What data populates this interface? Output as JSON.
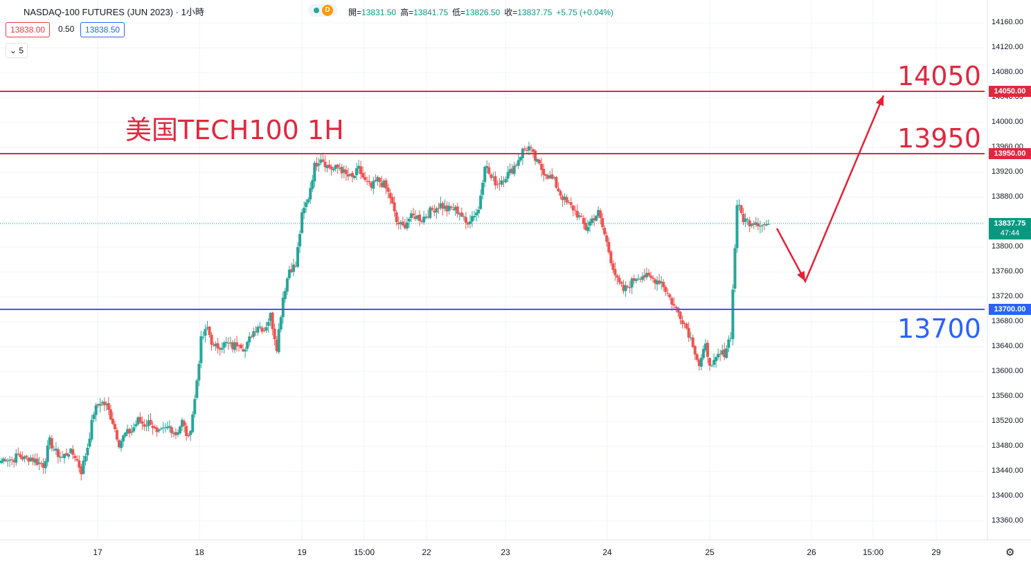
{
  "header": {
    "symbol": "NASDAQ-100 FUTURES (JUN 2023)",
    "sep": "·",
    "interval": "1小時",
    "badge_letter": "D",
    "ohlc": [
      {
        "k": "開=",
        "v": "13831.50"
      },
      {
        "k": "高=",
        "v": "13841.75"
      },
      {
        "k": "低=",
        "v": "13826.50"
      },
      {
        "k": "收=",
        "v": "13837.75"
      },
      {
        "k": "",
        "v": "+5.75 (+0.04%)"
      }
    ]
  },
  "trade": {
    "sell": "13838.00",
    "spread": "0.50",
    "buy": "13838.50",
    "indicator_count": "5"
  },
  "colors": {
    "up": "#26a69a",
    "down": "#ef5350",
    "red_line": "#e0283f",
    "blue_line": "#2962ff",
    "grid": "#f0f3fa",
    "current": "#089981"
  },
  "chart_data": {
    "type": "candlestick",
    "title": "美国TECH100 1H",
    "ylim": [
      13340,
      14180
    ],
    "y_ticks": [
      "14160.00",
      "14120.00",
      "14080.00",
      "14040.00",
      "14000.00",
      "13960.00",
      "13920.00",
      "13880.00",
      "13840.00",
      "13800.00",
      "13760.00",
      "13720.00",
      "13680.00",
      "13640.00",
      "13600.00",
      "13560.00",
      "13520.00",
      "13480.00",
      "13440.00",
      "13400.00",
      "13360.00"
    ],
    "x_ticks": [
      "17",
      "18",
      "19",
      "15:00",
      "22",
      "23",
      "24",
      "25",
      "26",
      "15:00",
      "29"
    ],
    "levels": [
      {
        "value": 14050,
        "label": "14050.00",
        "annotation": "14050",
        "color": "red"
      },
      {
        "value": 13950,
        "label": "13950.00",
        "annotation": "13950",
        "color": "red"
      },
      {
        "value": 13700,
        "label": "13700.00",
        "annotation": "13700",
        "color": "blue"
      }
    ],
    "current_price": {
      "value": "13837.75",
      "countdown": "47:44"
    },
    "forecast_path": [
      13830,
      13745,
      14050
    ],
    "anchors": [
      13455,
      13462,
      13458,
      13466,
      13460,
      13462,
      13455,
      13450,
      13488,
      13470,
      13462,
      13472,
      13465,
      13440,
      13480,
      13535,
      13552,
      13545,
      13520,
      13485,
      13500,
      13505,
      13522,
      13515,
      13520,
      13498,
      13505,
      13512,
      13500,
      13520,
      13490,
      13555,
      13650,
      13670,
      13638,
      13642,
      13645,
      13640,
      13648,
      13635,
      13660,
      13675,
      13668,
      13690,
      13640,
      13720,
      13765,
      13770,
      13850,
      13880,
      13930,
      13945,
      13930,
      13925,
      13928,
      13915,
      13910,
      13925,
      13905,
      13895,
      13908,
      13900,
      13880,
      13840,
      13832,
      13846,
      13850,
      13845,
      13855,
      13862,
      13868,
      13860,
      13862,
      13856,
      13838,
      13850,
      13860,
      13935,
      13910,
      13902,
      13912,
      13920,
      13935,
      13955,
      13960,
      13940,
      13925,
      13915,
      13905,
      13885,
      13870,
      13862,
      13848,
      13830,
      13845,
      13855,
      13820,
      13780,
      13745,
      13730,
      13740,
      13752,
      13755,
      13750,
      13748,
      13745,
      13725,
      13705,
      13690,
      13670,
      13645,
      13610,
      13640,
      13605,
      13625,
      13630,
      13660,
      13870,
      13845,
      13840,
      13842,
      13835,
      13837
    ]
  }
}
